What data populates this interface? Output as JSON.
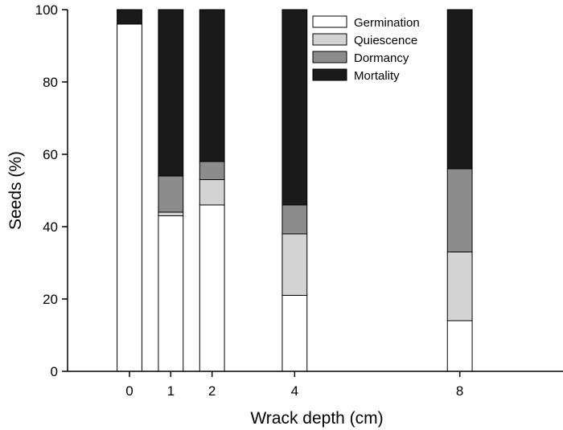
{
  "chart_data": {
    "type": "bar",
    "stacked": true,
    "title": "",
    "xlabel": "Wrack depth (cm)",
    "ylabel": "Seeds (%)",
    "x_scale": "linear",
    "xlim": [
      -1.5,
      10.5
    ],
    "ylim": [
      0,
      100
    ],
    "x": [
      0,
      1,
      2,
      4,
      8
    ],
    "x_tick_labels": [
      "0",
      "1",
      "2",
      "4",
      "8"
    ],
    "y_ticks": [
      0,
      20,
      40,
      60,
      80,
      100
    ],
    "y_tick_labels": [
      "0",
      "20",
      "40",
      "60",
      "80",
      "100"
    ],
    "grid": false,
    "legend_position": "top-right",
    "series": [
      {
        "name": "Germination",
        "values": [
          96,
          43,
          46,
          21,
          14
        ],
        "color": "#ffffff"
      },
      {
        "name": "Quiescence",
        "values": [
          0,
          1,
          7,
          17,
          19
        ],
        "color": "#d3d3d3"
      },
      {
        "name": "Dormancy",
        "values": [
          0,
          10,
          5,
          8,
          23
        ],
        "color": "#8c8c8c"
      },
      {
        "name": "Mortality",
        "values": [
          4,
          46,
          42,
          54,
          44
        ],
        "color": "#1a1a1a"
      }
    ]
  }
}
